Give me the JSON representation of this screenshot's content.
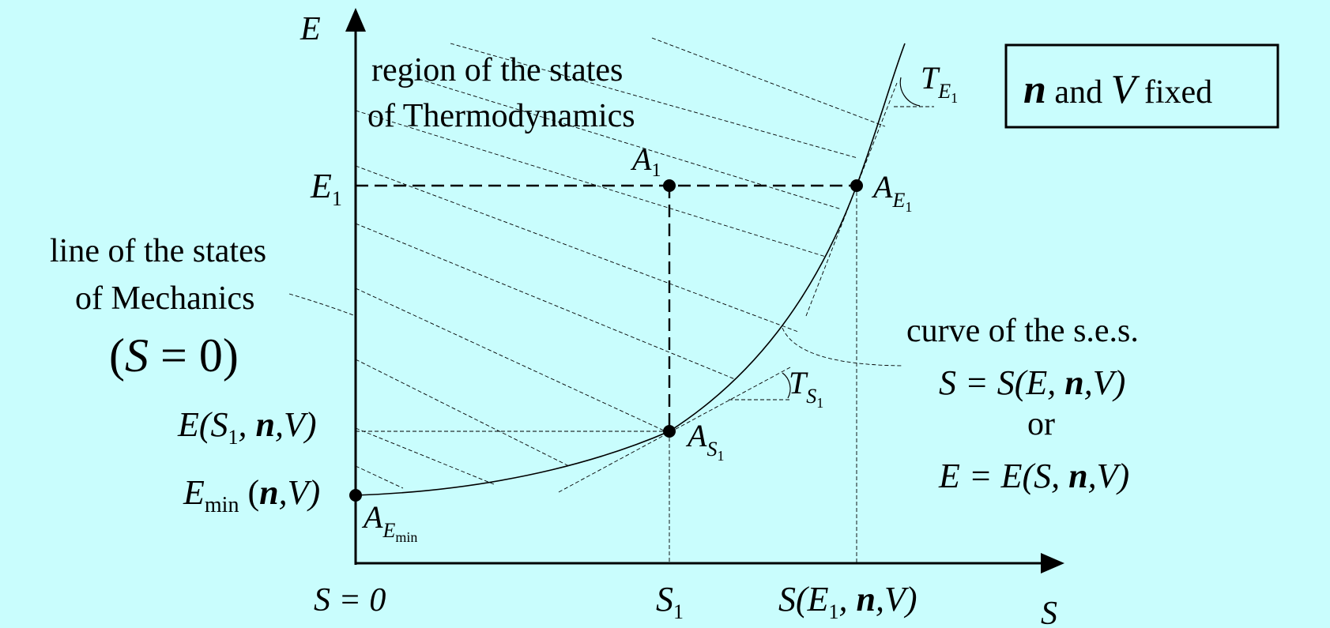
{
  "axes": {
    "e_label": "E",
    "s_label": "S"
  },
  "box": {
    "n": "n",
    "and": " and ",
    "v": "V",
    "fixed": " fixed"
  },
  "region_label": {
    "line1": "region of the states",
    "line2": "of Thermodynamics"
  },
  "mechanics_label": {
    "line1": "line of the states",
    "line2": "of Mechanics",
    "eq_open": "(",
    "eq_s": "S",
    "eq_rest": " = 0)"
  },
  "curve_label": {
    "line1": "curve of the s.e.s.",
    "eq1_left": "S = S(E, ",
    "eq1_n": "n",
    "eq1_right": ",V)",
    "or": "or",
    "eq2_left": "E = E(S, ",
    "eq2_n": "n",
    "eq2_right": ",V)"
  },
  "y_labels": {
    "e1_main": "E",
    "e1_sub": "1",
    "es1_left": "E(S",
    "es1_sub": "1",
    "es1_mid": ", ",
    "es1_n": "n",
    "es1_right": ",V)",
    "emin_main": "E",
    "emin_sub": "min",
    "emin_open": " (",
    "emin_n": "n",
    "emin_right": ",V)"
  },
  "x_labels": {
    "s0": "S = 0",
    "s1_main": "S",
    "s1_sub": "1",
    "se1_left": "S(E",
    "se1_sub": "1",
    "se1_mid": ", ",
    "se1_n": "n",
    "se1_right": ",V)"
  },
  "points": {
    "a1_main": "A",
    "a1_sub": "1",
    "ae1_main": "A",
    "ae1_sub": "E",
    "ae1_subsub": "1",
    "as1_main": "A",
    "as1_sub": "S",
    "as1_subsub": "1",
    "aemin_main": "A",
    "aemin_sub": "E",
    "aemin_subsub": "min"
  },
  "tangents": {
    "te1_main": "T",
    "te1_sub": "E",
    "te1_subsub": "1",
    "ts1_main": "T",
    "ts1_sub": "S",
    "ts1_subsub": "1"
  }
}
